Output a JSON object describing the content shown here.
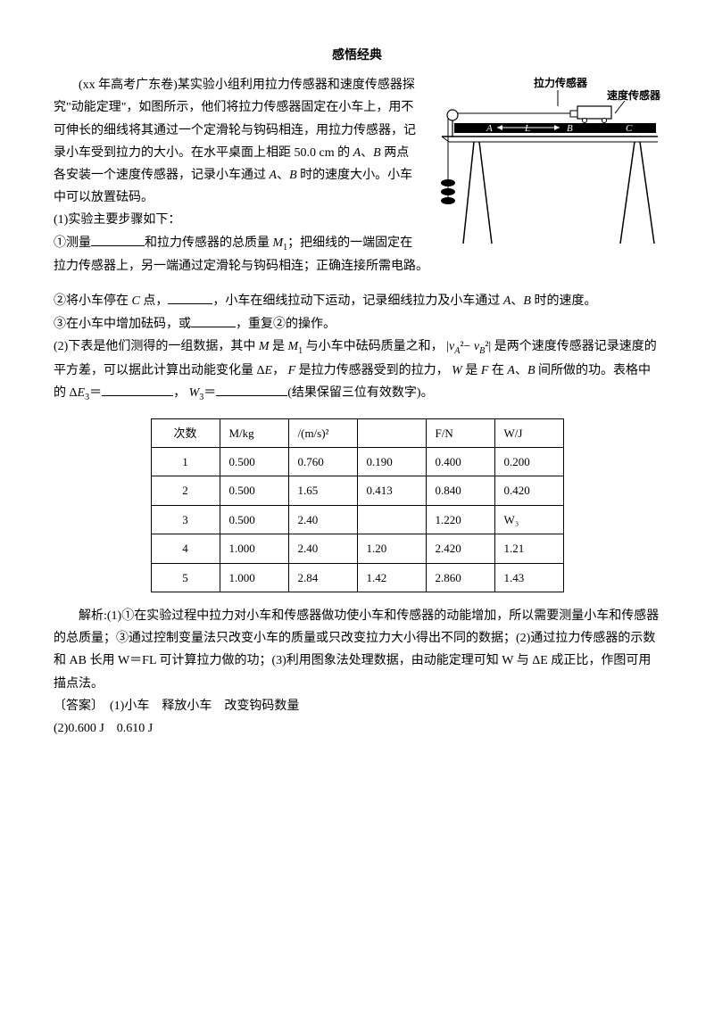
{
  "title": "感悟经典",
  "intro": {
    "source": "(xx 年高考广东卷)",
    "body1": "某实验小组利用拉力传感器和速度传感器探究\"动能定理\"，如图所示，他们将拉力传感器固定在小车上，用不可伸长的细线将其通过一个定滑轮与钩码相连，用拉力传感器，记录小车受到拉力的大小。在水平桌面上相距 50.0 cm 的",
    "body2": "两点各安装一个速度传感器，记录小车通过",
    "body3": "时的速度大小。小车中可以放置砝码。"
  },
  "figure": {
    "label_force": "拉力传感器",
    "label_speed": "速度传感器",
    "label_A": "A",
    "label_B": "B",
    "label_L": "L",
    "label_C": "C",
    "stroke": "#000000",
    "fill_bg": "#ffffff"
  },
  "steps": {
    "heading": "(1)实验主要步骤如下：",
    "s1a": "①测量",
    "s1b": "和拉力传感器的总质量",
    "s1c": "；把细线的一端固定在拉力传感器上，另一端通过定滑轮与钩码相连；正确连接所需电路。",
    "s2a": "②将小车停在",
    "s2b": "点，",
    "s2c": "，小车在细线拉动下运动，记录细线拉力及小车通过",
    "s2d": "时的速度。",
    "s3a": "③在小车中增加砝码，或",
    "s3b": "，重复②的操作。"
  },
  "part2": {
    "text1": "(2)下表是他们测得的一组数据，其中",
    "text2": "是",
    "text3": "与小车中砝码质量之和，",
    "text4": "是两个速度传感器记录速度的平方差，可以据此计算出动能变化量",
    "text5": "，",
    "text6": "是拉力传感器受到的拉力，",
    "text7": "是",
    "text8": "在",
    "text9": "、",
    "text10": "间所做的功。表格中的",
    "text11": "＝",
    "text12": "，",
    "text13": "＝",
    "text14": "(结果保留三位有效数字)。"
  },
  "table": {
    "headers": [
      "次数",
      "M/kg",
      "/(m/s)²",
      "",
      "F/N",
      "W/J"
    ],
    "rows": [
      [
        "1",
        "0.500",
        "0.760",
        "0.190",
        "0.400",
        "0.200"
      ],
      [
        "2",
        "0.500",
        "1.65",
        "0.413",
        "0.840",
        "0.420"
      ],
      [
        "3",
        "0.500",
        "2.40",
        "",
        "1.220",
        "W₃"
      ],
      [
        "4",
        "1.000",
        "2.40",
        "1.20",
        "2.420",
        "1.21"
      ],
      [
        "5",
        "1.000",
        "2.84",
        "1.42",
        "2.860",
        "1.43"
      ]
    ]
  },
  "explain": {
    "label": "解析:",
    "text": "(1)①在实验过程中拉力对小车和传感器做功使小车和传感器的动能增加，所以需要测量小车和传感器的总质量；③通过控制变量法只改变小车的质量或只改变拉力大小得出不同的数据；(2)通过拉力传感器的示数和 AB 长用 W＝FL 可计算拉力做的功；(3)利用图象法处理数据，由动能定理可知 W 与 ΔE 成正比，作图可用描点法。"
  },
  "answer": {
    "label": "〔答案〕",
    "line1": "(1)小车　释放小车　改变钩码数量",
    "line2": "(2)0.600 J　0.610 J"
  }
}
